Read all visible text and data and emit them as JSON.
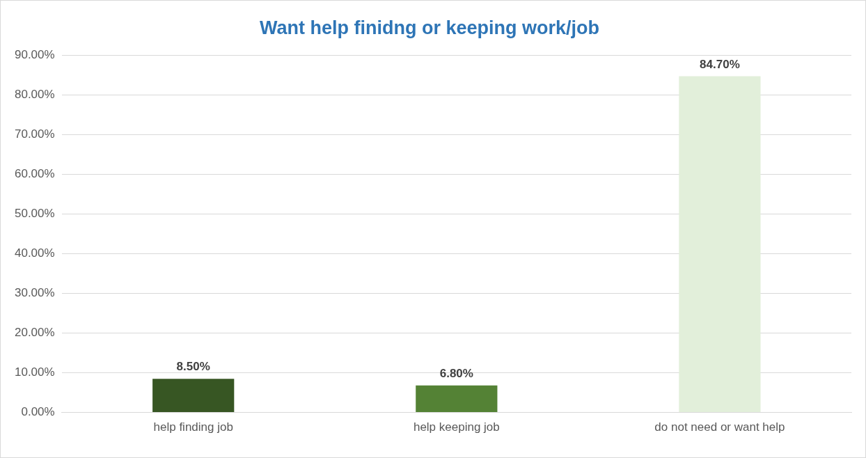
{
  "chart_data": {
    "type": "bar",
    "title": "Want help finidng or keeping work/job",
    "categories": [
      "help finding job",
      "help keeping job",
      "do not need or want help"
    ],
    "values": [
      8.5,
      6.8,
      84.7
    ],
    "colors": [
      "#375623",
      "#548235",
      "#e2efda"
    ],
    "value_labels": [
      "8.50%",
      "6.80%",
      "84.70%"
    ],
    "ylim": [
      0,
      90
    ],
    "yticks": [
      {
        "value": 0,
        "label": "0.00%"
      },
      {
        "value": 10,
        "label": "10.00%"
      },
      {
        "value": 20,
        "label": "20.00%"
      },
      {
        "value": 30,
        "label": "30.00%"
      },
      {
        "value": 40,
        "label": "40.00%"
      },
      {
        "value": 50,
        "label": "50.00%"
      },
      {
        "value": 60,
        "label": "60.00%"
      },
      {
        "value": 70,
        "label": "70.00%"
      },
      {
        "value": 80,
        "label": "80.00%"
      },
      {
        "value": 90,
        "label": "90.00%"
      }
    ],
    "grid": "y"
  }
}
